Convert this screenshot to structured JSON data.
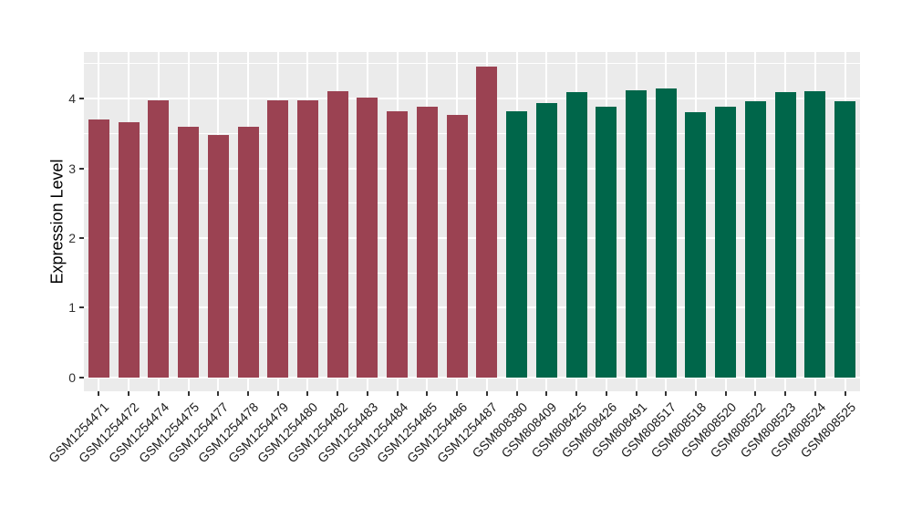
{
  "chart_data": {
    "type": "bar",
    "title": "",
    "xlabel": "",
    "ylabel": "Expression Level",
    "ylim": [
      -0.2,
      4.67
    ],
    "yticks": [
      0,
      1,
      2,
      3,
      4
    ],
    "yminor_ticks": [
      0.5,
      1.5,
      2.5,
      3.5,
      4.5
    ],
    "grid": "horizontal major+minor, vertical major per category, white on gray panel",
    "legend_position": "none",
    "panel_bg": "#EBEBEB",
    "grid_color": "#FFFFFF",
    "tick_color": "#333333",
    "axis_text_color": "#1A1A1A",
    "group_colors": [
      "#9B4252",
      "#00664A"
    ],
    "bars": [
      {
        "label": "GSM1254471",
        "value": 3.7,
        "group": 0
      },
      {
        "label": "GSM1254472",
        "value": 3.66,
        "group": 0
      },
      {
        "label": "GSM1254474",
        "value": 3.98,
        "group": 0
      },
      {
        "label": "GSM1254475",
        "value": 3.59,
        "group": 0
      },
      {
        "label": "GSM1254477",
        "value": 3.48,
        "group": 0
      },
      {
        "label": "GSM1254478",
        "value": 3.59,
        "group": 0
      },
      {
        "label": "GSM1254479",
        "value": 3.97,
        "group": 0
      },
      {
        "label": "GSM1254480",
        "value": 3.98,
        "group": 0
      },
      {
        "label": "GSM1254482",
        "value": 4.11,
        "group": 0
      },
      {
        "label": "GSM1254483",
        "value": 4.01,
        "group": 0
      },
      {
        "label": "GSM1254484",
        "value": 3.82,
        "group": 0
      },
      {
        "label": "GSM1254485",
        "value": 3.88,
        "group": 0
      },
      {
        "label": "GSM1254486",
        "value": 3.77,
        "group": 0
      },
      {
        "label": "GSM1254487",
        "value": 4.46,
        "group": 0
      },
      {
        "label": "GSM808380",
        "value": 3.82,
        "group": 1
      },
      {
        "label": "GSM808409",
        "value": 3.94,
        "group": 1
      },
      {
        "label": "GSM808425",
        "value": 4.1,
        "group": 1
      },
      {
        "label": "GSM808426",
        "value": 3.88,
        "group": 1
      },
      {
        "label": "GSM808491",
        "value": 4.12,
        "group": 1
      },
      {
        "label": "GSM808517",
        "value": 4.14,
        "group": 1
      },
      {
        "label": "GSM808518",
        "value": 3.8,
        "group": 1
      },
      {
        "label": "GSM808520",
        "value": 3.89,
        "group": 1
      },
      {
        "label": "GSM808522",
        "value": 3.96,
        "group": 1
      },
      {
        "label": "GSM808523",
        "value": 4.1,
        "group": 1
      },
      {
        "label": "GSM808524",
        "value": 4.11,
        "group": 1
      },
      {
        "label": "GSM808525",
        "value": 3.96,
        "group": 1
      }
    ]
  }
}
